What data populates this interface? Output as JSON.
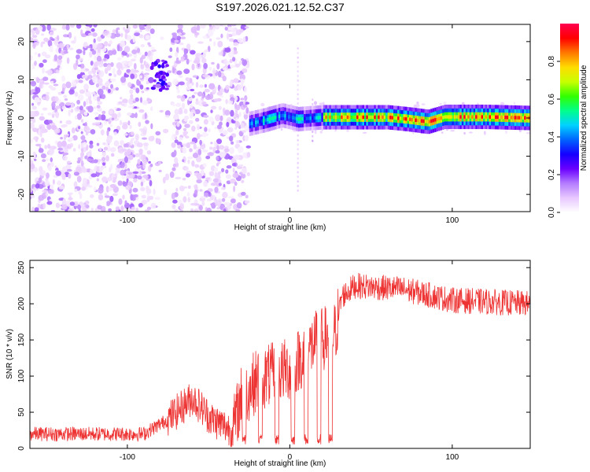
{
  "figure_title": "S197.2026.021.12.52.C37",
  "chart_data": [
    {
      "type": "heatmap",
      "title": "S197.2026.021.12.52.C37",
      "xlabel": "Height of straight line (km)",
      "ylabel": "Frequency (Hz)",
      "xlim": [
        -160,
        148
      ],
      "ylim": [
        -24.5,
        24.5
      ],
      "xticks": [
        -100,
        0,
        100
      ],
      "xtick_labels": [
        "-100",
        "0",
        "100"
      ],
      "yticks": [
        20,
        10,
        0,
        -10,
        -20
      ],
      "ytick_labels": [
        "20",
        "10",
        "0",
        "-10",
        "-20"
      ],
      "colorbar": {
        "label": "Normalized spectral amplitude",
        "range": [
          0,
          1
        ],
        "ticks": [
          0.0,
          0.2,
          0.4,
          0.6,
          0.8
        ],
        "tick_labels": [
          "0.0",
          "0.2",
          "0.4",
          "0.6",
          "0.8"
        ],
        "colormap": [
          "#ffffff",
          "#e8c8ff",
          "#b47cff",
          "#6a00ff",
          "#1400ff",
          "#0064ff",
          "#00d2ff",
          "#00ff8c",
          "#32ff00",
          "#c8ff00",
          "#ffdc00",
          "#ff7800",
          "#ff0000",
          "#ff0050"
        ]
      },
      "features": {
        "noise_region_km": [
          -160,
          -25
        ],
        "noise_gap_km": [
          -85,
          -72
        ],
        "burst": {
          "x_km": -80,
          "freq_hz": 11,
          "amplitude": 0.3
        },
        "tone_start_km": -25,
        "tone_track": [
          {
            "x": -25,
            "f": -1.5
          },
          {
            "x": -15,
            "f": -0.5
          },
          {
            "x": -5,
            "f": 0.7
          },
          {
            "x": 5,
            "f": -0.3
          },
          {
            "x": 20,
            "f": 0.2
          },
          {
            "x": 60,
            "f": 0.2
          },
          {
            "x": 72,
            "f": -0.3
          },
          {
            "x": 85,
            "f": -1.0
          },
          {
            "x": 95,
            "f": 0.3
          },
          {
            "x": 120,
            "f": 0.3
          },
          {
            "x": 148,
            "f": 0.0
          }
        ],
        "tone_peak_amplitude": 0.95
      }
    },
    {
      "type": "line",
      "xlabel": "Height of straight line (km)",
      "ylabel": "SNR (10 * v/v)",
      "xlim": [
        -160,
        148
      ],
      "ylim": [
        0,
        260
      ],
      "xticks": [
        -100,
        0,
        100
      ],
      "xtick_labels": [
        "-100",
        "0",
        "100"
      ],
      "yticks": [
        0,
        50,
        100,
        150,
        200,
        250
      ],
      "ytick_labels": [
        "0",
        "50",
        "100",
        "150",
        "200",
        "250"
      ],
      "color": "#ee3333",
      "key_points": [
        {
          "x": -160,
          "y": 20
        },
        {
          "x": -90,
          "y": 20
        },
        {
          "x": -75,
          "y": 40
        },
        {
          "x": -60,
          "y": 70
        },
        {
          "x": -48,
          "y": 40
        },
        {
          "x": -35,
          "y": 25
        },
        {
          "x": -30,
          "y": 70
        },
        {
          "x": -20,
          "y": 95
        },
        {
          "x": 0,
          "y": 110
        },
        {
          "x": 15,
          "y": 145
        },
        {
          "x": 28,
          "y": 160
        },
        {
          "x": 32,
          "y": 210
        },
        {
          "x": 40,
          "y": 225
        },
        {
          "x": 70,
          "y": 220
        },
        {
          "x": 100,
          "y": 205
        },
        {
          "x": 148,
          "y": 200
        }
      ],
      "dips_km": [
        -28,
        -18,
        -8,
        2,
        10,
        18,
        25
      ],
      "noise_amplitude": 18
    }
  ]
}
